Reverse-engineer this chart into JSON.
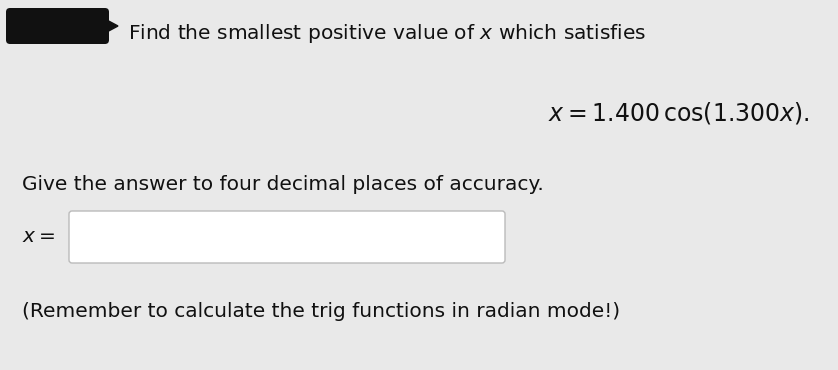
{
  "bg_color": "#e9e9e9",
  "font_size_main": 14.5,
  "font_size_eq": 17,
  "redacted_color": "#111111",
  "text_color": "#111111",
  "box_edge_color": "#bbbbbb",
  "box_face_color": "#ffffff"
}
